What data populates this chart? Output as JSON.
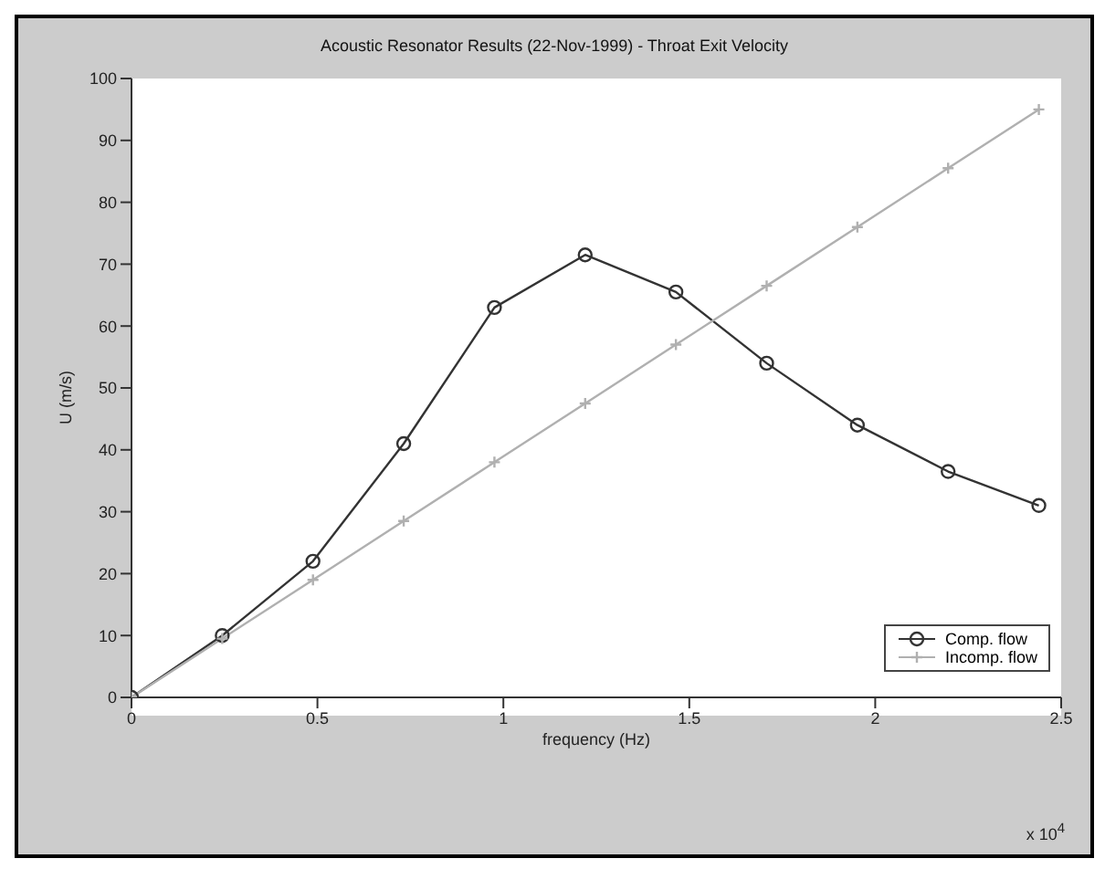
{
  "chart_data": {
    "type": "line",
    "title": "Acoustic Resonator Results (22-Nov-1999) - Throat Exit Velocity",
    "xlabel": "frequency (Hz)",
    "ylabel": "U (m/s)",
    "annotations": [
      "x 10$^{4}$"
    ],
    "x": [
      0,
      0.244,
      0.488,
      0.732,
      0.976,
      1.22,
      1.464,
      1.708,
      1.952,
      2.196,
      2.44
    ],
    "series": [
      {
        "name": "Comp. flow",
        "color": "#333333",
        "marker": "circle",
        "values": [
          0,
          10,
          22,
          41,
          63,
          71.5,
          65.5,
          54,
          44,
          36.5,
          31
        ]
      },
      {
        "name": "Incomp. flow",
        "color": "#b0b0b0",
        "marker": "cross",
        "values": [
          0,
          9.5,
          19,
          28.5,
          38,
          47.5,
          57,
          66.5,
          76,
          85.5,
          95
        ]
      }
    ],
    "xlim": [
      0,
      2.5
    ],
    "xticks": [
      0,
      0.5,
      1,
      1.5,
      2,
      2.5
    ],
    "ylim": [
      0,
      100
    ],
    "yticks": [
      0,
      10,
      20,
      30,
      40,
      50,
      60,
      70,
      80,
      90,
      100
    ],
    "grid": false,
    "legend": "bottom right",
    "line_style": "solid"
  }
}
